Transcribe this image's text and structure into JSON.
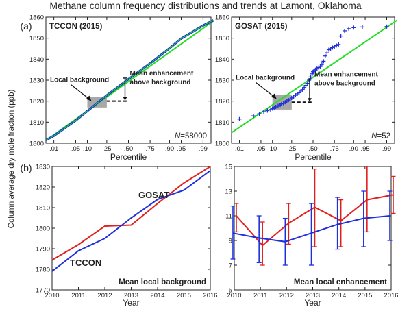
{
  "figure": {
    "title": "Methane column frequency distributions and trends at Lamont, Oklahoma",
    "ylabel": "Column average dry mole fraction (ppb)",
    "panel_a_label": "(a)",
    "panel_b_label": "(b)"
  },
  "colors": {
    "tccon": "#1f2fdc",
    "gosat": "#e0201e",
    "fit": "#22dd22",
    "box": "#999999"
  },
  "chart_data": [
    {
      "type": "line",
      "panel": "a-left",
      "title": "TCCON (2015)",
      "xlabel": "Percentile",
      "x_ticks": [
        ".01",
        ".05",
        ".10",
        ".25",
        ".50",
        ".75",
        ".90",
        ".95",
        ".99"
      ],
      "ylim": [
        1800,
        1860
      ],
      "y_ticks": [
        1800,
        1810,
        1820,
        1830,
        1840,
        1850,
        1860
      ],
      "annotations": {
        "n": "N=58000",
        "local_background": "Local background",
        "enhancement_line1": "Mean enhancement",
        "enhancement_line2": "above background"
      },
      "series": [
        {
          "x": [
            0.005,
            0.01,
            0.05,
            0.1,
            0.25,
            0.5,
            0.75,
            0.9,
            0.95,
            0.99,
            0.997
          ],
          "y": [
            1801.5,
            1803.5,
            1810.8,
            1815.3,
            1822.8,
            1830.5,
            1838.0,
            1845.2,
            1849.8,
            1856.0,
            1858.5
          ]
        }
      ],
      "fit": {
        "x": [
          0.005,
          0.997
        ],
        "y": [
          1801.3,
          1858.2
        ]
      },
      "box": {
        "x": [
          0.1,
          0.25
        ],
        "y": [
          1817,
          1822
        ]
      }
    },
    {
      "type": "scatter",
      "panel": "a-right",
      "title": "GOSAT (2015)",
      "xlabel": "Percentile",
      "x_ticks": [
        ".01",
        ".05",
        ".10",
        ".25",
        ".50",
        ".75",
        ".90",
        ".95",
        ".99"
      ],
      "ylim": [
        1800,
        1860
      ],
      "y_ticks": [
        1800,
        1810,
        1820,
        1830,
        1840,
        1850,
        1860
      ],
      "annotations": {
        "n": "N=52",
        "local_background": "Local background",
        "enhancement_line1": "Mean enhancement",
        "enhancement_line2": "above background"
      },
      "series": [
        {
          "x": [
            0.01,
            0.03,
            0.045,
            0.06,
            0.075,
            0.09,
            0.1,
            0.11,
            0.12,
            0.135,
            0.15,
            0.16,
            0.175,
            0.19,
            0.205,
            0.22,
            0.235,
            0.25,
            0.27,
            0.29,
            0.31,
            0.33,
            0.35,
            0.37,
            0.39,
            0.41,
            0.43,
            0.45,
            0.47,
            0.49,
            0.5,
            0.51,
            0.53,
            0.55,
            0.57,
            0.59,
            0.61,
            0.63,
            0.65,
            0.67,
            0.69,
            0.71,
            0.73,
            0.75,
            0.77,
            0.79,
            0.81,
            0.84,
            0.87,
            0.9,
            0.94,
            0.99
          ],
          "y": [
            1811.5,
            1813.0,
            1814.0,
            1815.0,
            1815.5,
            1816.0,
            1816.5,
            1817.0,
            1817.3,
            1817.8,
            1818.2,
            1818.7,
            1819.0,
            1819.5,
            1820.0,
            1820.5,
            1821.0,
            1821.5,
            1822.0,
            1822.8,
            1823.5,
            1824.0,
            1824.8,
            1825.5,
            1826.5,
            1827.5,
            1828.5,
            1830.0,
            1831.5,
            1833.0,
            1834.0,
            1834.5,
            1835.0,
            1835.5,
            1836.0,
            1836.5,
            1837.5,
            1839.0,
            1841.5,
            1843.0,
            1844.5,
            1845.0,
            1845.5,
            1846.0,
            1846.5,
            1847.0,
            1851.0,
            1853.5,
            1854.5,
            1855.0,
            1855.3,
            1855.5
          ]
        }
      ],
      "fit": {
        "x": [
          0.005,
          0.997
        ],
        "y": [
          1805.0,
          1858.5
        ]
      },
      "box": {
        "x": [
          0.1,
          0.25
        ],
        "y": [
          1816,
          1823
        ]
      }
    },
    {
      "type": "line",
      "panel": "b-left",
      "xlabel": "Year",
      "ylim": [
        1770,
        1830
      ],
      "y_ticks": [
        1770,
        1780,
        1790,
        1800,
        1810,
        1820,
        1830
      ],
      "x": [
        2010,
        2011,
        2012,
        2013,
        2014,
        2015,
        2016
      ],
      "caption": "Mean local background",
      "series": [
        {
          "name": "GOSAT",
          "values": [
            1784.5,
            1792.0,
            1801.0,
            1801.5,
            1812.0,
            1822.0,
            1830.0
          ]
        },
        {
          "name": "TCCON",
          "values": [
            1779.0,
            1789.0,
            1795.0,
            1805.0,
            1814.0,
            1818.5,
            1828.0
          ]
        }
      ]
    },
    {
      "type": "line",
      "panel": "b-right",
      "xlabel": "Year",
      "ylim": [
        5,
        15
      ],
      "y_ticks": [
        5,
        7,
        9,
        11,
        13,
        15
      ],
      "x": [
        2010,
        2011,
        2012,
        2013,
        2014,
        2015,
        2016
      ],
      "caption": "Mean local enhancement",
      "series": [
        {
          "name": "GOSAT",
          "values": [
            11.0,
            8.6,
            10.4,
            11.7,
            10.6,
            12.3,
            12.7
          ],
          "err_low": [
            9.7,
            7.0,
            8.7,
            8.5,
            8.5,
            9.7,
            11.2
          ],
          "err_high": [
            12.0,
            10.5,
            12.0,
            14.8,
            12.3,
            15.0,
            14.2
          ]
        },
        {
          "name": "TCCON",
          "values": [
            9.6,
            9.2,
            8.9,
            9.6,
            10.3,
            10.8,
            11.0
          ],
          "err_low": [
            7.5,
            7.2,
            7.0,
            7.0,
            8.3,
            8.5,
            9.0
          ],
          "err_high": [
            11.8,
            11.0,
            10.8,
            12.0,
            12.5,
            13.0,
            13.0
          ]
        }
      ]
    }
  ]
}
